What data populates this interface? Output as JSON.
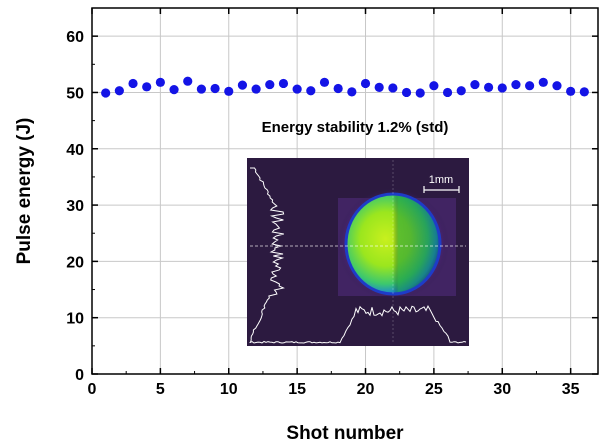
{
  "chart_data": {
    "type": "scatter",
    "xlabel": "Shot number",
    "ylabel": "Pulse energy (J)",
    "xlim": [
      0,
      37
    ],
    "ylim": [
      0,
      65
    ],
    "xticks": [
      0,
      5,
      10,
      15,
      20,
      25,
      30,
      35
    ],
    "yticks": [
      0,
      10,
      20,
      30,
      40,
      50,
      60
    ],
    "grid": true,
    "series": [
      {
        "color": "#1414e6",
        "x": [
          1,
          2,
          3,
          4,
          5,
          6,
          7,
          8,
          9,
          10,
          11,
          12,
          13,
          14,
          15,
          16,
          17,
          18,
          19,
          20,
          21,
          22,
          23,
          24,
          25,
          26,
          27,
          28,
          29,
          30,
          31,
          32,
          33,
          34,
          35,
          36
        ],
        "y": [
          49.9,
          50.3,
          51.6,
          51.0,
          51.8,
          50.5,
          52.0,
          50.6,
          50.7,
          50.2,
          51.3,
          50.6,
          51.4,
          51.6,
          50.6,
          50.3,
          51.8,
          50.7,
          50.1,
          51.6,
          50.9,
          50.8,
          50.0,
          49.9,
          51.2,
          50.0,
          50.3,
          51.4,
          50.9,
          50.8,
          51.4,
          51.2,
          51.8,
          51.2,
          50.2,
          50.1
        ]
      }
    ],
    "annotation": "Energy stability 1.2% (std)",
    "inset": {
      "scale_bar_label": "1mm"
    }
  }
}
